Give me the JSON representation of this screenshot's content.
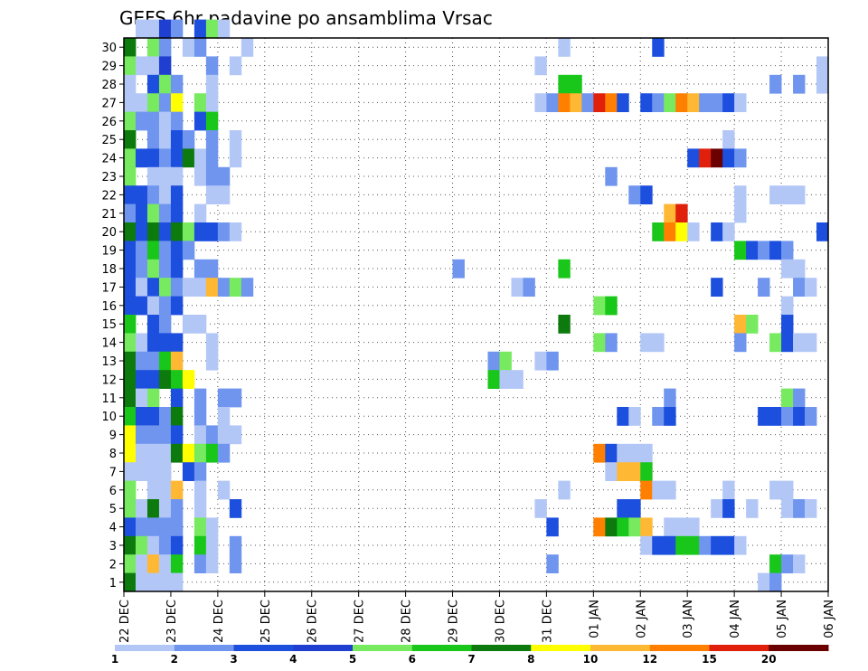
{
  "chart_data": {
    "type": "heatmap",
    "title": "GEFS 6hr padavine po ansamblima Vrsac",
    "xlabel": "",
    "ylabel": "",
    "x_ticks": [
      "22 DEC",
      "23 DEC",
      "24 DEC",
      "25 DEC",
      "26 DEC",
      "27 DEC",
      "28 DEC",
      "29 DEC",
      "30 DEC",
      "31 DEC",
      "01 JAN",
      "02 JAN",
      "03 JAN",
      "04 JAN",
      "05 JAN",
      "06 JAN"
    ],
    "y_ticks": [
      "1",
      "2",
      "3",
      "4",
      "5",
      "6",
      "7",
      "8",
      "9",
      "10",
      "11",
      "12",
      "13",
      "14",
      "15",
      "16",
      "17",
      "18",
      "19",
      "20",
      "21",
      "22",
      "23",
      "24",
      "25",
      "26",
      "27",
      "28",
      "29",
      "30"
    ],
    "xlim": [
      0,
      60
    ],
    "ylim": [
      0,
      30
    ],
    "x_unit": "6-hour step since 22 DEC 00Z",
    "colorbar": {
      "levels": [
        "1",
        "2",
        "3",
        "4",
        "5",
        "6",
        "7",
        "8",
        "10",
        "12",
        "15",
        "20"
      ],
      "colors": [
        "#b3c7f7",
        "#6f95ef",
        "#1c4fde",
        "#1f3fd0",
        "#77ea5f",
        "#19c71a",
        "#0d7a0d",
        "#ffff00",
        "#ffb833",
        "#ff7f00",
        "#e0200a",
        "#6a0000"
      ]
    },
    "cells": [
      [
        1,
        30,
        0
      ],
      [
        2,
        30,
        0
      ],
      [
        3,
        30,
        3
      ],
      [
        4,
        30,
        1
      ],
      [
        6,
        30,
        2
      ],
      [
        7,
        30,
        4
      ],
      [
        8,
        30,
        0
      ],
      [
        0,
        29,
        6
      ],
      [
        2,
        29,
        4
      ],
      [
        3,
        29,
        1
      ],
      [
        5,
        29,
        0
      ],
      [
        6,
        29,
        1
      ],
      [
        10,
        29,
        0
      ],
      [
        37,
        29,
        0
      ],
      [
        45,
        29,
        2
      ],
      [
        0,
        28,
        4
      ],
      [
        1,
        28,
        0
      ],
      [
        2,
        28,
        0
      ],
      [
        3,
        28,
        3
      ],
      [
        7,
        28,
        1
      ],
      [
        9,
        28,
        0
      ],
      [
        35,
        28,
        0
      ],
      [
        59,
        28,
        0
      ],
      [
        0,
        27,
        0
      ],
      [
        2,
        27,
        2
      ],
      [
        3,
        27,
        4
      ],
      [
        4,
        27,
        1
      ],
      [
        7,
        27,
        0
      ],
      [
        37,
        27,
        5
      ],
      [
        38,
        27,
        5
      ],
      [
        55,
        27,
        1
      ],
      [
        57,
        27,
        1
      ],
      [
        59,
        27,
        0
      ],
      [
        0,
        26,
        0
      ],
      [
        1,
        26,
        0
      ],
      [
        2,
        26,
        4
      ],
      [
        3,
        26,
        1
      ],
      [
        4,
        26,
        7
      ],
      [
        6,
        26,
        4
      ],
      [
        7,
        26,
        0
      ],
      [
        35,
        26,
        0
      ],
      [
        36,
        26,
        1
      ],
      [
        37,
        26,
        9
      ],
      [
        38,
        26,
        8
      ],
      [
        39,
        26,
        1
      ],
      [
        40,
        26,
        10
      ],
      [
        41,
        26,
        9
      ],
      [
        42,
        26,
        2
      ],
      [
        44,
        26,
        2
      ],
      [
        45,
        26,
        1
      ],
      [
        46,
        26,
        4
      ],
      [
        47,
        26,
        9
      ],
      [
        48,
        26,
        8
      ],
      [
        49,
        26,
        1
      ],
      [
        50,
        26,
        1
      ],
      [
        51,
        26,
        2
      ],
      [
        52,
        26,
        0
      ],
      [
        0,
        25,
        4
      ],
      [
        1,
        25,
        1
      ],
      [
        2,
        25,
        1
      ],
      [
        3,
        25,
        0
      ],
      [
        4,
        25,
        1
      ],
      [
        6,
        25,
        2
      ],
      [
        7,
        25,
        5
      ],
      [
        0,
        24,
        6
      ],
      [
        2,
        24,
        1
      ],
      [
        3,
        24,
        0
      ],
      [
        4,
        24,
        2
      ],
      [
        5,
        24,
        1
      ],
      [
        7,
        24,
        1
      ],
      [
        9,
        24,
        0
      ],
      [
        51,
        24,
        0
      ],
      [
        0,
        23,
        4
      ],
      [
        1,
        23,
        2
      ],
      [
        2,
        23,
        2
      ],
      [
        3,
        23,
        1
      ],
      [
        4,
        23,
        2
      ],
      [
        5,
        23,
        6
      ],
      [
        6,
        23,
        0
      ],
      [
        7,
        23,
        1
      ],
      [
        9,
        23,
        0
      ],
      [
        48,
        23,
        2
      ],
      [
        49,
        23,
        10
      ],
      [
        50,
        23,
        11
      ],
      [
        51,
        23,
        2
      ],
      [
        52,
        23,
        1
      ],
      [
        0,
        22,
        4
      ],
      [
        2,
        22,
        0
      ],
      [
        3,
        22,
        0
      ],
      [
        4,
        22,
        0
      ],
      [
        6,
        22,
        0
      ],
      [
        7,
        22,
        1
      ],
      [
        8,
        22,
        1
      ],
      [
        41,
        22,
        1
      ],
      [
        0,
        21,
        2
      ],
      [
        1,
        21,
        2
      ],
      [
        2,
        21,
        1
      ],
      [
        3,
        21,
        0
      ],
      [
        4,
        21,
        2
      ],
      [
        7,
        21,
        0
      ],
      [
        8,
        21,
        0
      ],
      [
        43,
        21,
        1
      ],
      [
        44,
        21,
        2
      ],
      [
        52,
        21,
        0
      ],
      [
        55,
        21,
        0
      ],
      [
        56,
        21,
        0
      ],
      [
        57,
        21,
        0
      ],
      [
        0,
        20,
        1
      ],
      [
        1,
        20,
        2
      ],
      [
        2,
        20,
        4
      ],
      [
        3,
        20,
        1
      ],
      [
        4,
        20,
        2
      ],
      [
        6,
        20,
        0
      ],
      [
        46,
        20,
        8
      ],
      [
        47,
        20,
        10
      ],
      [
        52,
        20,
        0
      ],
      [
        0,
        19,
        6
      ],
      [
        1,
        19,
        2
      ],
      [
        2,
        19,
        6
      ],
      [
        3,
        19,
        2
      ],
      [
        4,
        19,
        6
      ],
      [
        5,
        19,
        4
      ],
      [
        6,
        19,
        2
      ],
      [
        7,
        19,
        2
      ],
      [
        8,
        19,
        1
      ],
      [
        9,
        19,
        0
      ],
      [
        45,
        19,
        5
      ],
      [
        46,
        19,
        9
      ],
      [
        47,
        19,
        7
      ],
      [
        48,
        19,
        0
      ],
      [
        50,
        19,
        2
      ],
      [
        51,
        19,
        0
      ],
      [
        59,
        19,
        2
      ],
      [
        0,
        18,
        2
      ],
      [
        1,
        18,
        1
      ],
      [
        2,
        18,
        5
      ],
      [
        3,
        18,
        1
      ],
      [
        4,
        18,
        2
      ],
      [
        5,
        18,
        1
      ],
      [
        52,
        18,
        5
      ],
      [
        53,
        18,
        2
      ],
      [
        54,
        18,
        1
      ],
      [
        55,
        18,
        2
      ],
      [
        56,
        18,
        1
      ],
      [
        0,
        17,
        2
      ],
      [
        1,
        17,
        1
      ],
      [
        2,
        17,
        4
      ],
      [
        3,
        17,
        1
      ],
      [
        4,
        17,
        2
      ],
      [
        6,
        17,
        1
      ],
      [
        7,
        17,
        1
      ],
      [
        28,
        17,
        1
      ],
      [
        37,
        17,
        5
      ],
      [
        56,
        17,
        0
      ],
      [
        57,
        17,
        0
      ],
      [
        0,
        16,
        2
      ],
      [
        1,
        16,
        0
      ],
      [
        2,
        16,
        2
      ],
      [
        3,
        16,
        4
      ],
      [
        4,
        16,
        1
      ],
      [
        5,
        16,
        0
      ],
      [
        6,
        16,
        0
      ],
      [
        7,
        16,
        8
      ],
      [
        8,
        16,
        1
      ],
      [
        9,
        16,
        4
      ],
      [
        10,
        16,
        1
      ],
      [
        33,
        16,
        0
      ],
      [
        34,
        16,
        1
      ],
      [
        50,
        16,
        2
      ],
      [
        54,
        16,
        1
      ],
      [
        57,
        16,
        1
      ],
      [
        58,
        16,
        0
      ],
      [
        0,
        15,
        2
      ],
      [
        1,
        15,
        2
      ],
      [
        2,
        15,
        0
      ],
      [
        3,
        15,
        1
      ],
      [
        4,
        15,
        2
      ],
      [
        40,
        15,
        4
      ],
      [
        41,
        15,
        5
      ],
      [
        56,
        15,
        0
      ],
      [
        0,
        14,
        5
      ],
      [
        2,
        14,
        2
      ],
      [
        3,
        14,
        1
      ],
      [
        5,
        14,
        0
      ],
      [
        6,
        14,
        0
      ],
      [
        37,
        14,
        6
      ],
      [
        52,
        14,
        8
      ],
      [
        53,
        14,
        4
      ],
      [
        56,
        14,
        2
      ],
      [
        0,
        13,
        4
      ],
      [
        1,
        13,
        0
      ],
      [
        2,
        13,
        2
      ],
      [
        3,
        13,
        2
      ],
      [
        4,
        13,
        2
      ],
      [
        7,
        13,
        0
      ],
      [
        40,
        13,
        4
      ],
      [
        41,
        13,
        1
      ],
      [
        44,
        13,
        0
      ],
      [
        45,
        13,
        0
      ],
      [
        52,
        13,
        1
      ],
      [
        55,
        13,
        4
      ],
      [
        56,
        13,
        2
      ],
      [
        57,
        13,
        0
      ],
      [
        58,
        13,
        0
      ],
      [
        0,
        12,
        6
      ],
      [
        1,
        12,
        1
      ],
      [
        2,
        12,
        1
      ],
      [
        3,
        12,
        5
      ],
      [
        4,
        12,
        8
      ],
      [
        7,
        12,
        0
      ],
      [
        31,
        12,
        1
      ],
      [
        32,
        12,
        4
      ],
      [
        35,
        12,
        0
      ],
      [
        36,
        12,
        1
      ],
      [
        0,
        11,
        6
      ],
      [
        1,
        11,
        2
      ],
      [
        2,
        11,
        2
      ],
      [
        3,
        11,
        6
      ],
      [
        4,
        11,
        5
      ],
      [
        5,
        11,
        7
      ],
      [
        31,
        11,
        5
      ],
      [
        32,
        11,
        0
      ],
      [
        33,
        11,
        0
      ],
      [
        0,
        10,
        6
      ],
      [
        1,
        10,
        0
      ],
      [
        2,
        10,
        4
      ],
      [
        4,
        10,
        2
      ],
      [
        6,
        10,
        1
      ],
      [
        8,
        10,
        1
      ],
      [
        9,
        10,
        1
      ],
      [
        46,
        10,
        1
      ],
      [
        56,
        10,
        4
      ],
      [
        57,
        10,
        1
      ],
      [
        0,
        9,
        5
      ],
      [
        1,
        9,
        2
      ],
      [
        2,
        9,
        2
      ],
      [
        3,
        9,
        1
      ],
      [
        4,
        9,
        6
      ],
      [
        6,
        9,
        1
      ],
      [
        8,
        9,
        0
      ],
      [
        42,
        9,
        2
      ],
      [
        43,
        9,
        0
      ],
      [
        45,
        9,
        1
      ],
      [
        46,
        9,
        2
      ],
      [
        54,
        9,
        2
      ],
      [
        55,
        9,
        2
      ],
      [
        56,
        9,
        1
      ],
      [
        57,
        9,
        2
      ],
      [
        58,
        9,
        1
      ],
      [
        0,
        8,
        7
      ],
      [
        1,
        8,
        1
      ],
      [
        2,
        8,
        1
      ],
      [
        3,
        8,
        1
      ],
      [
        4,
        8,
        2
      ],
      [
        6,
        8,
        0
      ],
      [
        7,
        8,
        1
      ],
      [
        8,
        8,
        0
      ],
      [
        9,
        8,
        0
      ],
      [
        0,
        7,
        7
      ],
      [
        1,
        7,
        0
      ],
      [
        2,
        7,
        0
      ],
      [
        3,
        7,
        0
      ],
      [
        4,
        7,
        6
      ],
      [
        5,
        7,
        7
      ],
      [
        6,
        7,
        4
      ],
      [
        7,
        7,
        5
      ],
      [
        8,
        7,
        1
      ],
      [
        40,
        7,
        9
      ],
      [
        41,
        7,
        2
      ],
      [
        42,
        7,
        0
      ],
      [
        43,
        7,
        0
      ],
      [
        44,
        7,
        0
      ],
      [
        0,
        6,
        0
      ],
      [
        1,
        6,
        0
      ],
      [
        2,
        6,
        0
      ],
      [
        3,
        6,
        0
      ],
      [
        5,
        6,
        2
      ],
      [
        6,
        6,
        1
      ],
      [
        41,
        6,
        0
      ],
      [
        42,
        6,
        8
      ],
      [
        43,
        6,
        8
      ],
      [
        44,
        6,
        5
      ],
      [
        0,
        5,
        4
      ],
      [
        2,
        5,
        0
      ],
      [
        3,
        5,
        0
      ],
      [
        4,
        5,
        8
      ],
      [
        6,
        5,
        0
      ],
      [
        8,
        5,
        0
      ],
      [
        37,
        5,
        0
      ],
      [
        44,
        5,
        9
      ],
      [
        45,
        5,
        0
      ],
      [
        46,
        5,
        0
      ],
      [
        51,
        5,
        0
      ],
      [
        55,
        5,
        0
      ],
      [
        56,
        5,
        0
      ],
      [
        0,
        4,
        4
      ],
      [
        1,
        4,
        0
      ],
      [
        2,
        4,
        6
      ],
      [
        3,
        4,
        0
      ],
      [
        4,
        4,
        1
      ],
      [
        6,
        4,
        0
      ],
      [
        9,
        4,
        2
      ],
      [
        35,
        4,
        0
      ],
      [
        42,
        4,
        2
      ],
      [
        43,
        4,
        2
      ],
      [
        50,
        4,
        0
      ],
      [
        51,
        4,
        2
      ],
      [
        53,
        4,
        0
      ],
      [
        56,
        4,
        0
      ],
      [
        57,
        4,
        1
      ],
      [
        58,
        4,
        0
      ],
      [
        0,
        3,
        2
      ],
      [
        1,
        3,
        1
      ],
      [
        2,
        3,
        1
      ],
      [
        3,
        3,
        1
      ],
      [
        4,
        3,
        1
      ],
      [
        6,
        3,
        4
      ],
      [
        7,
        3,
        0
      ],
      [
        36,
        3,
        2
      ],
      [
        40,
        3,
        9
      ],
      [
        41,
        3,
        6
      ],
      [
        42,
        3,
        5
      ],
      [
        43,
        3,
        4
      ],
      [
        44,
        3,
        8
      ],
      [
        46,
        3,
        0
      ],
      [
        47,
        3,
        0
      ],
      [
        48,
        3,
        0
      ],
      [
        0,
        2,
        6
      ],
      [
        1,
        2,
        4
      ],
      [
        2,
        2,
        0
      ],
      [
        3,
        2,
        1
      ],
      [
        4,
        2,
        2
      ],
      [
        6,
        2,
        5
      ],
      [
        7,
        2,
        0
      ],
      [
        9,
        2,
        1
      ],
      [
        44,
        2,
        0
      ],
      [
        45,
        2,
        2
      ],
      [
        46,
        2,
        2
      ],
      [
        47,
        2,
        5
      ],
      [
        48,
        2,
        5
      ],
      [
        49,
        2,
        1
      ],
      [
        50,
        2,
        2
      ],
      [
        51,
        2,
        2
      ],
      [
        52,
        2,
        0
      ],
      [
        0,
        1,
        4
      ],
      [
        1,
        1,
        0
      ],
      [
        2,
        1,
        8
      ],
      [
        3,
        1,
        0
      ],
      [
        4,
        1,
        5
      ],
      [
        6,
        1,
        1
      ],
      [
        7,
        1,
        0
      ],
      [
        9,
        1,
        1
      ],
      [
        36,
        1,
        1
      ],
      [
        55,
        1,
        5
      ],
      [
        56,
        1,
        1
      ],
      [
        57,
        1,
        0
      ],
      [
        0,
        0,
        6
      ],
      [
        1,
        0,
        0
      ],
      [
        2,
        0,
        0
      ],
      [
        3,
        0,
        0
      ],
      [
        4,
        0,
        0
      ],
      [
        54,
        0,
        0
      ],
      [
        55,
        0,
        1
      ]
    ]
  }
}
